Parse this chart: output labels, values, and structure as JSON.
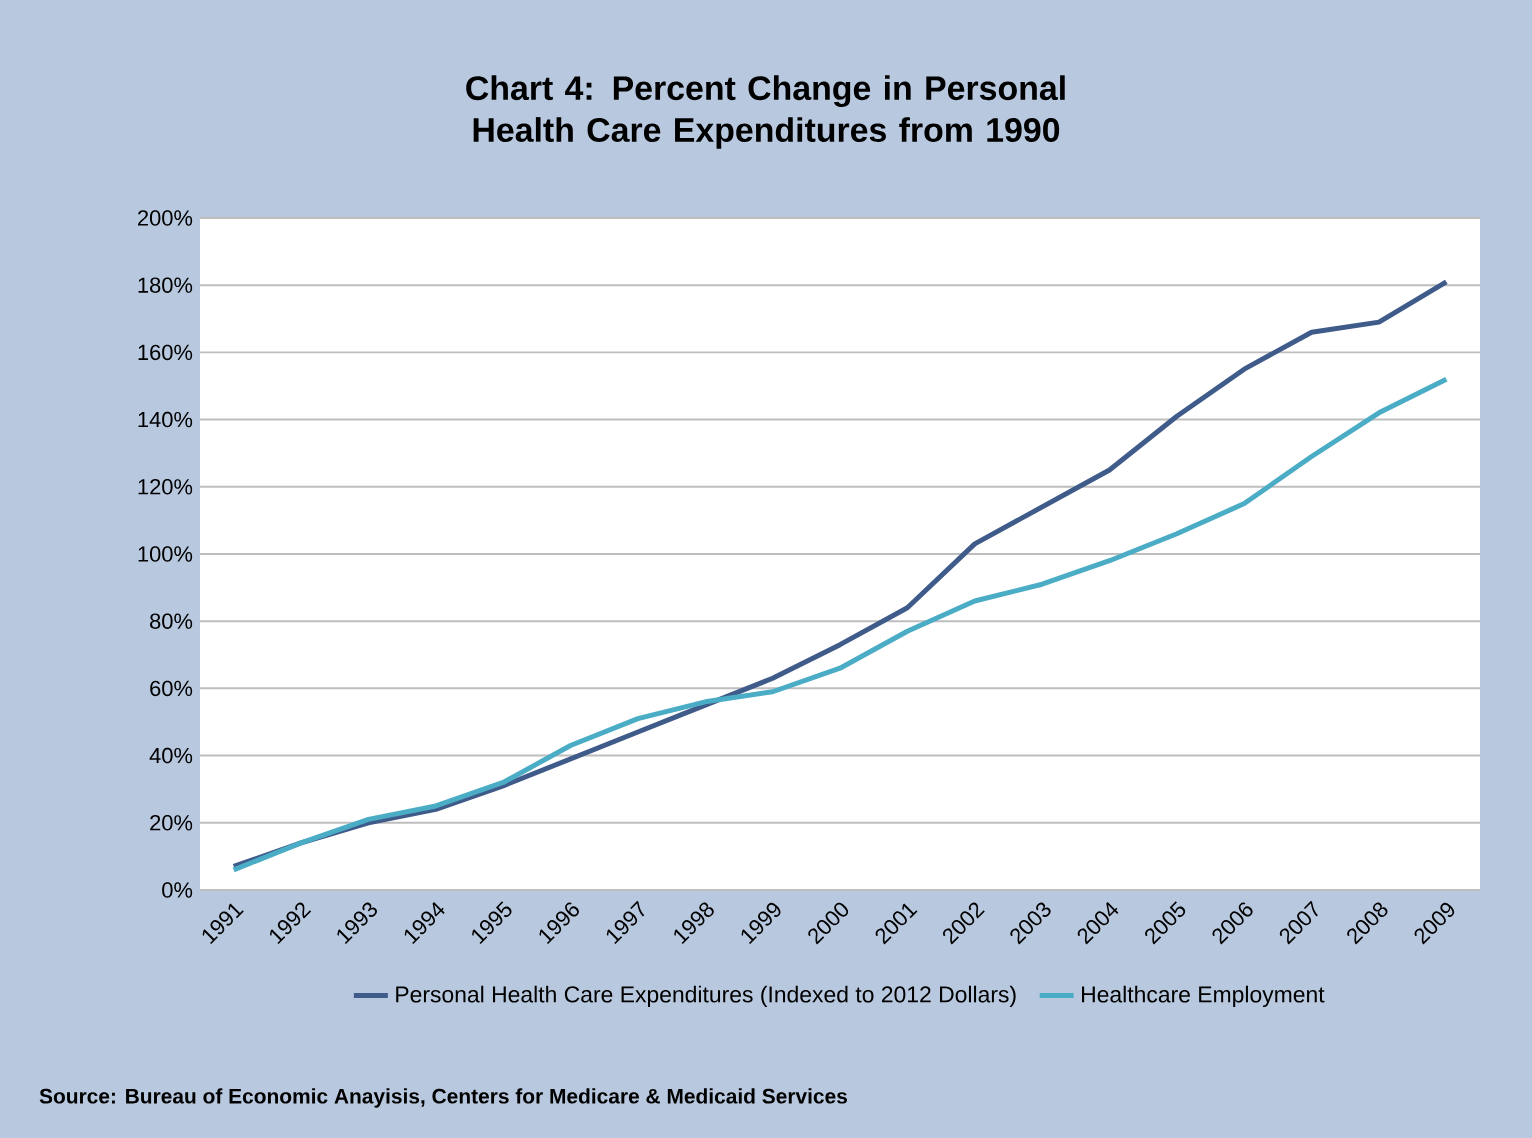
{
  "chart_data": {
    "type": "line",
    "title": "Chart 4: Percent Change in Personal Health Care Expenditures from 1990",
    "categories": [
      "1991",
      "1992",
      "1993",
      "1994",
      "1995",
      "1996",
      "1997",
      "1998",
      "1999",
      "2000",
      "2001",
      "2002",
      "2003",
      "2004",
      "2005",
      "2006",
      "2007",
      "2008",
      "2009"
    ],
    "series": [
      {
        "name": "Personal Health Care Expenditures (Indexed to 2012 Dollars)",
        "color": "#3f5b8a",
        "values": [
          7,
          14,
          20,
          24,
          31,
          39,
          47,
          55,
          63,
          73,
          84,
          103,
          114,
          125,
          141,
          155,
          166,
          169,
          181
        ]
      },
      {
        "name": "Healthcare Employment",
        "color": "#4bacc6",
        "values": [
          6,
          14,
          21,
          25,
          32,
          43,
          51,
          56,
          59,
          66,
          77,
          86,
          91,
          98,
          106,
          115,
          129,
          142,
          152
        ]
      }
    ],
    "ylim": [
      0,
      200
    ],
    "yticks": [
      {
        "value": 0,
        "label": "0%"
      },
      {
        "value": 20,
        "label": "20%"
      },
      {
        "value": 40,
        "label": "40%"
      },
      {
        "value": 60,
        "label": "60%"
      },
      {
        "value": 80,
        "label": "80%"
      },
      {
        "value": 100,
        "label": "100%"
      },
      {
        "value": 120,
        "label": "120%"
      },
      {
        "value": 140,
        "label": "140%"
      },
      {
        "value": 160,
        "label": "160%"
      },
      {
        "value": 180,
        "label": "180%"
      },
      {
        "value": 200,
        "label": "200%"
      }
    ],
    "grid": "y",
    "legend": "bottom",
    "marker": "none",
    "line_style": "solid",
    "annotations": [
      "Source: Bureau of Economic Anayisis, Centers for Medicare & Medicaid Services"
    ]
  }
}
